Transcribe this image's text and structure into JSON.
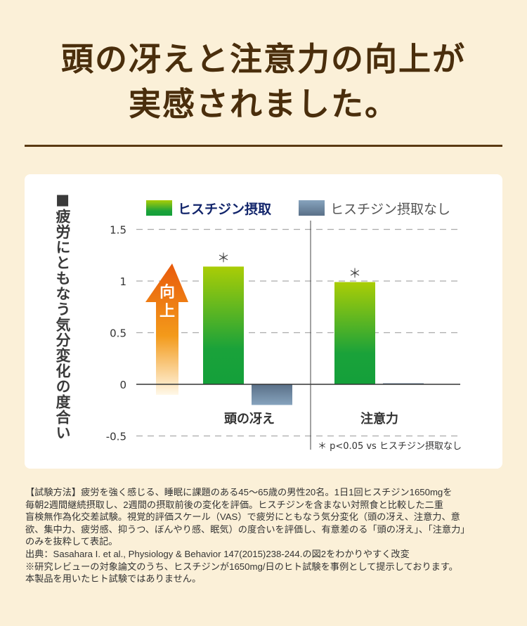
{
  "title_lines": [
    "頭の冴えと注意力の向上が",
    "実感されました。"
  ],
  "chart_data": {
    "type": "bar",
    "ylabel": "■疲労にともなう気分変化の度合い",
    "categories": [
      "頭の冴え",
      "注意力"
    ],
    "series": [
      {
        "name": "ヒスチジン摂取",
        "values": [
          1.14,
          0.99
        ],
        "color": "#1aa23a",
        "color_top": "#aacd06"
      },
      {
        "name": "ヒスチジン摂取なし",
        "values": [
          -0.2,
          0.01
        ],
        "color": "#7f9bb3",
        "color_top": "#5a7088"
      }
    ],
    "ylim": [
      -0.5,
      1.5
    ],
    "yticks": [
      "1.5",
      "1",
      "0.5",
      "0",
      "-0.5"
    ],
    "ytick_values": [
      1.5,
      1,
      0.5,
      0,
      -0.5
    ],
    "grid": "dashed horizontal",
    "legend": "top",
    "significance_marks": [
      "＊",
      "＊"
    ],
    "arrow_label": [
      "向",
      "上"
    ],
    "footnote": "＊ p<0.05 vs ヒスチジン摂取なし"
  },
  "notes": [
    "【試験方法】疲労を強く感じる、睡眠に課題のある45～65歳の男性20名。1日1回ヒスチジン1650mgを",
    "毎朝2週間継続摂取し、2週間の摂取前後の変化を評価。ヒスチジンを含まない対照食と比較した二重",
    "盲検無作為化交差試験。視覚的評価スケール（VAS）で疲労にともなう気分変化（頭の冴え、注意力、意",
    "欲、集中力、疲労感、抑うつ、ぼんやり感、眠気）の度合いを評価し、有意差のる「頭の冴え」、「注意力」",
    "のみを抜粋して表記。",
    "出典：Sasahara I. et al., Physiology & Behavior 147(2015)238-244.の図2をわかりやすく改変",
    "※研究レビューの対象論文のうち、ヒスチジンが1650mg/日のヒト試験を事例として提示しております。",
    "本製品を用いたヒト試験ではありません。"
  ]
}
